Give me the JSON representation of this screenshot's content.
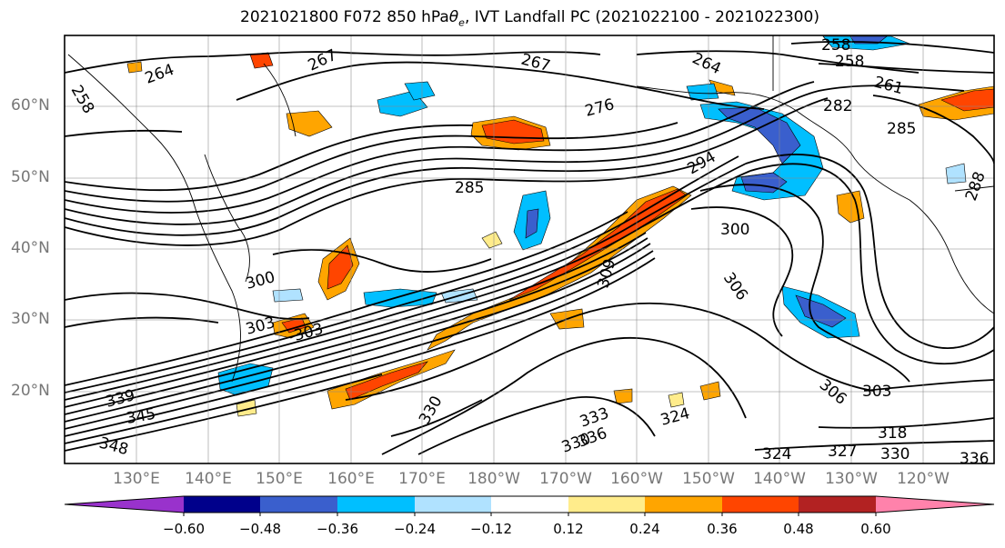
{
  "title": {
    "prefix": "2021021800 F072 850 hPa ",
    "theta_symbol": "θ",
    "theta_sub": "e",
    "suffix": ", IVT Landfall PC (2021022100 - 2021022300)"
  },
  "axes": {
    "lat_labels": [
      "60°N",
      "50°N",
      "40°N",
      "30°N",
      "20°N"
    ],
    "lon_labels": [
      "130°E",
      "140°E",
      "150°E",
      "160°E",
      "170°E",
      "180°W",
      "170°W",
      "160°W",
      "150°W",
      "140°W",
      "130°W",
      "120°W"
    ]
  },
  "contour_labels": [
    {
      "text": "258"
    },
    {
      "text": "264"
    },
    {
      "text": "267"
    },
    {
      "text": "267"
    },
    {
      "text": "264"
    },
    {
      "text": "258"
    },
    {
      "text": "258"
    },
    {
      "text": "261"
    },
    {
      "text": "282"
    },
    {
      "text": "285"
    },
    {
      "text": "276"
    },
    {
      "text": "285"
    },
    {
      "text": "294"
    },
    {
      "text": "300"
    },
    {
      "text": "306"
    },
    {
      "text": "309"
    },
    {
      "text": "300"
    },
    {
      "text": "303"
    },
    {
      "text": "303"
    },
    {
      "text": "306"
    },
    {
      "text": "303"
    },
    {
      "text": "318"
    },
    {
      "text": "324"
    },
    {
      "text": "327"
    },
    {
      "text": "330"
    },
    {
      "text": "333"
    },
    {
      "text": "336"
    },
    {
      "text": "336"
    },
    {
      "text": "330"
    },
    {
      "text": "324"
    },
    {
      "text": "339"
    },
    {
      "text": "345"
    },
    {
      "text": "348"
    },
    {
      "text": "330"
    },
    {
      "text": "288"
    }
  ],
  "colorbar": {
    "colors": [
      "#9932cc",
      "#00008b",
      "#3a5fcd",
      "#00bfff",
      "#b0e2ff",
      "#ffffff",
      "#ffec8b",
      "#ffa500",
      "#ff4500",
      "#b22222",
      "#ff82ab"
    ],
    "tick_labels": [
      "−0.60",
      "−0.48",
      "−0.36",
      "−0.24",
      "−0.12",
      "0.12",
      "0.24",
      "0.36",
      "0.48",
      "0.60"
    ]
  }
}
